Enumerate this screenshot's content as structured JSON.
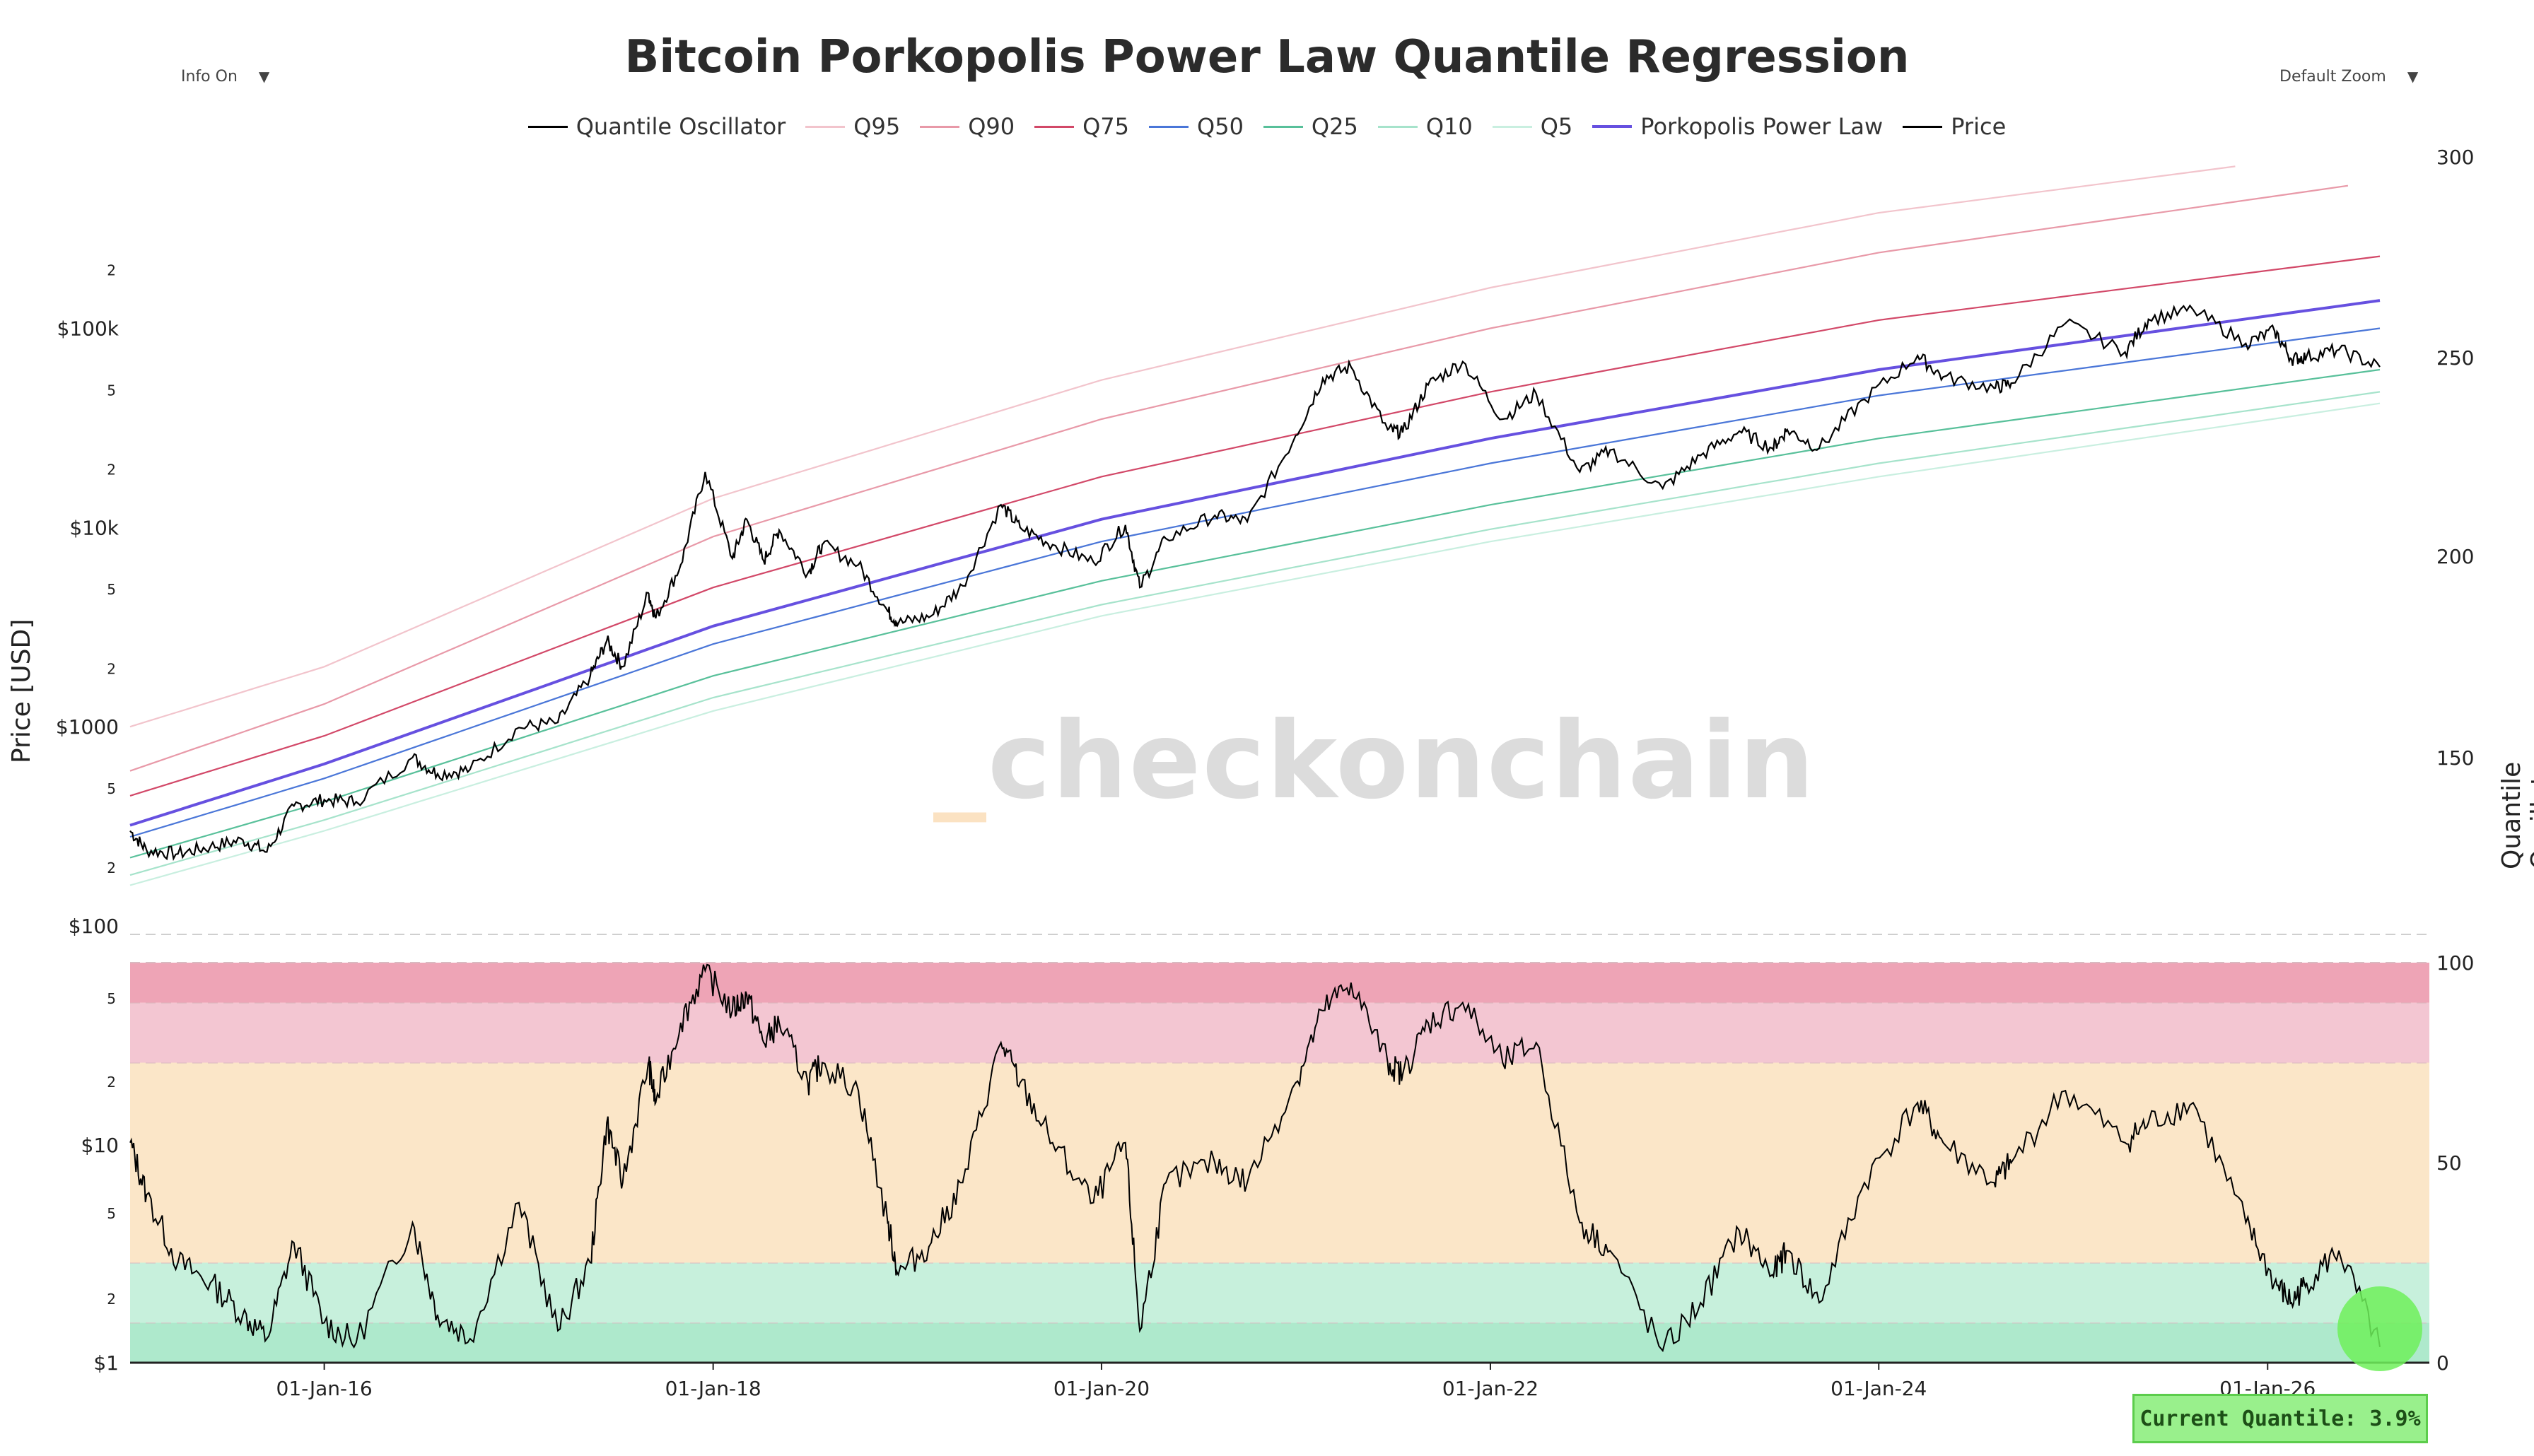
{
  "header": {
    "title": "Bitcoin Porkopolis Power Law Quantile Regression",
    "info_label": "Info On",
    "zoom_label": "Default Zoom"
  },
  "watermark": "checkonchain",
  "axes": {
    "left_title": "Price [USD]",
    "right_title": "Quantile Oscillator"
  },
  "badge": "Current Quantile: 3.9%",
  "colors": {
    "q95": "#f2c4cc",
    "q90": "#e899a8",
    "q75": "#d24868",
    "q50": "#4a76d8",
    "q25": "#58c09a",
    "q10": "#a6e3cb",
    "q5": "#c9efe0",
    "powerlaw": "#6650e0",
    "price": "#000000",
    "band_top": "#eea4b6",
    "band_high": "#f3c6d2",
    "band_mid": "#fbe6c8",
    "band_low": "#c7f0dc",
    "band_bottom": "#aee9cc",
    "current_marker": "#6ef05a"
  },
  "chart_data": {
    "type": "line",
    "title": "Bitcoin Porkopolis Power Law Quantile Regression",
    "xlabel": "",
    "ylabel": "Price [USD]",
    "ylabel_right": "Quantile Oscillator",
    "legend_position": "top-center",
    "x_range": [
      "2015-01-01",
      "2026-11-01"
    ],
    "x_ticks": [
      "01-Jan-16",
      "01-Jan-18",
      "01-Jan-20",
      "01-Jan-22",
      "01-Jan-24",
      "01-Jan-26"
    ],
    "price_y_scale": "log",
    "price_y_range": [
      100,
      800000
    ],
    "price_y_ticks": [
      "$100",
      "2",
      "5",
      "$1000",
      "2",
      "5",
      "$10k",
      "2",
      "5",
      "$100k",
      "2"
    ],
    "right_y_ticks_top": [
      "150",
      "200",
      "250",
      "300"
    ],
    "osc_price_y_ticks": [
      "$1",
      "2",
      "5",
      "$10",
      "2",
      "5"
    ],
    "osc_y_range": [
      0,
      100
    ],
    "osc_y_ticks": [
      "0",
      "50",
      "100"
    ],
    "osc_bands": [
      {
        "from": 0,
        "to": 10,
        "color": "band_bottom"
      },
      {
        "from": 10,
        "to": 25,
        "color": "band_low"
      },
      {
        "from": 25,
        "to": 75,
        "color": "band_mid"
      },
      {
        "from": 75,
        "to": 90,
        "color": "band_high"
      },
      {
        "from": 90,
        "to": 100,
        "color": "band_top"
      }
    ],
    "legend": [
      "Quantile Oscillator",
      "Q95",
      "Q90",
      "Q75",
      "Q50",
      "Q25",
      "Q10",
      "Q5",
      "Porkopolis Power Law",
      "Price"
    ],
    "curves": [
      {
        "name": "Q95",
        "color": "q95",
        "points": [
          [
            "2015-01-01",
            1000
          ],
          [
            "2016-01-01",
            2000
          ],
          [
            "2018-01-01",
            14000
          ],
          [
            "2020-01-01",
            55000
          ],
          [
            "2022-01-01",
            160000
          ],
          [
            "2024-01-01",
            380000
          ],
          [
            "2025-11-01",
            650000
          ]
        ]
      },
      {
        "name": "Q90",
        "color": "q90",
        "points": [
          [
            "2015-01-01",
            600
          ],
          [
            "2016-01-01",
            1300
          ],
          [
            "2018-01-01",
            9000
          ],
          [
            "2020-01-01",
            35000
          ],
          [
            "2022-01-01",
            100000
          ],
          [
            "2024-01-01",
            240000
          ],
          [
            "2026-06-01",
            520000
          ]
        ]
      },
      {
        "name": "Q75",
        "color": "q75",
        "points": [
          [
            "2015-01-01",
            450
          ],
          [
            "2016-01-01",
            900
          ],
          [
            "2018-01-01",
            5000
          ],
          [
            "2020-01-01",
            18000
          ],
          [
            "2022-01-01",
            48000
          ],
          [
            "2024-01-01",
            110000
          ],
          [
            "2026-07-31",
            230000
          ]
        ]
      },
      {
        "name": "Porkopolis Power Law",
        "color": "powerlaw",
        "points": [
          [
            "2015-01-01",
            320
          ],
          [
            "2016-01-01",
            650
          ],
          [
            "2018-01-01",
            3200
          ],
          [
            "2020-01-01",
            11000
          ],
          [
            "2022-01-01",
            28000
          ],
          [
            "2024-01-01",
            62000
          ],
          [
            "2026-07-31",
            138000
          ]
        ]
      },
      {
        "name": "Q50",
        "color": "q50",
        "points": [
          [
            "2015-01-01",
            280
          ],
          [
            "2016-01-01",
            550
          ],
          [
            "2018-01-01",
            2600
          ],
          [
            "2020-01-01",
            8500
          ],
          [
            "2022-01-01",
            21000
          ],
          [
            "2024-01-01",
            46000
          ],
          [
            "2026-07-31",
            100000
          ]
        ]
      },
      {
        "name": "Q25",
        "color": "q25",
        "points": [
          [
            "2015-01-01",
            220
          ],
          [
            "2016-01-01",
            420
          ],
          [
            "2018-01-01",
            1800
          ],
          [
            "2020-01-01",
            5400
          ],
          [
            "2022-01-01",
            13000
          ],
          [
            "2024-01-01",
            28000
          ],
          [
            "2026-07-31",
            62000
          ]
        ]
      },
      {
        "name": "Q10",
        "color": "q10",
        "points": [
          [
            "2015-01-01",
            180
          ],
          [
            "2016-01-01",
            340
          ],
          [
            "2018-01-01",
            1400
          ],
          [
            "2020-01-01",
            4100
          ],
          [
            "2022-01-01",
            9800
          ],
          [
            "2024-01-01",
            21000
          ],
          [
            "2026-07-31",
            48000
          ]
        ]
      },
      {
        "name": "Q5",
        "color": "q5",
        "points": [
          [
            "2015-01-01",
            160
          ],
          [
            "2016-01-01",
            300
          ],
          [
            "2018-01-01",
            1200
          ],
          [
            "2020-01-01",
            3600
          ],
          [
            "2022-01-01",
            8500
          ],
          [
            "2024-01-01",
            18000
          ],
          [
            "2026-07-31",
            42000
          ]
        ]
      }
    ],
    "price": [
      [
        "2015-01-01",
        300
      ],
      [
        "2015-02-01",
        240
      ],
      [
        "2015-04-01",
        230
      ],
      [
        "2015-06-01",
        250
      ],
      [
        "2015-08-01",
        270
      ],
      [
        "2015-09-15",
        235
      ],
      [
        "2015-11-05",
        400
      ],
      [
        "2016-01-01",
        430
      ],
      [
        "2016-03-01",
        420
      ],
      [
        "2016-06-15",
        700
      ],
      [
        "2016-08-01",
        580
      ],
      [
        "2016-10-01",
        610
      ],
      [
        "2017-01-01",
        990
      ],
      [
        "2017-03-15",
        1050
      ],
      [
        "2017-05-15",
        1800
      ],
      [
        "2017-06-15",
        2700
      ],
      [
        "2017-07-15",
        2000
      ],
      [
        "2017-09-01",
        4700
      ],
      [
        "2017-09-15",
        3500
      ],
      [
        "2017-11-01",
        6500
      ],
      [
        "2017-12-17",
        19000
      ],
      [
        "2018-02-06",
        7000
      ],
      [
        "2018-03-05",
        11000
      ],
      [
        "2018-04-06",
        6800
      ],
      [
        "2018-05-05",
        9700
      ],
      [
        "2018-06-28",
        5900
      ],
      [
        "2018-07-25",
        8200
      ],
      [
        "2018-10-01",
        6500
      ],
      [
        "2018-11-25",
        3800
      ],
      [
        "2018-12-15",
        3300
      ],
      [
        "2019-02-15",
        3600
      ],
      [
        "2019-04-15",
        5100
      ],
      [
        "2019-06-26",
        13000
      ],
      [
        "2019-08-01",
        10000
      ],
      [
        "2019-10-01",
        8200
      ],
      [
        "2019-12-17",
        6700
      ],
      [
        "2020-02-15",
        10300
      ],
      [
        "2020-03-13",
        5000
      ],
      [
        "2020-05-01",
        8800
      ],
      [
        "2020-08-01",
        11500
      ],
      [
        "2020-10-01",
        10700
      ],
      [
        "2020-12-31",
        29000
      ],
      [
        "2021-02-20",
        56000
      ],
      [
        "2021-04-14",
        64000
      ],
      [
        "2021-06-22",
        31000
      ],
      [
        "2021-07-20",
        30000
      ],
      [
        "2021-09-06",
        52000
      ],
      [
        "2021-11-10",
        68000
      ],
      [
        "2022-01-24",
        35000
      ],
      [
        "2022-03-28",
        47000
      ],
      [
        "2022-06-18",
        19000
      ],
      [
        "2022-08-14",
        24500
      ],
      [
        "2022-11-21",
        15700
      ],
      [
        "2023-01-31",
        23000
      ],
      [
        "2023-04-14",
        30500
      ],
      [
        "2023-06-15",
        25000
      ],
      [
        "2023-07-13",
        31000
      ],
      [
        "2023-09-11",
        25000
      ],
      [
        "2023-12-05",
        44000
      ],
      [
        "2024-03-14",
        73000
      ],
      [
        "2024-05-01",
        57000
      ],
      [
        "2024-08-05",
        50000
      ],
      [
        "2024-09-06",
        53000
      ],
      [
        "2024-12-17",
        106000
      ],
      [
        "2025-04-08",
        76000
      ],
      [
        "2025-05-22",
        111000
      ],
      [
        "2025-08-14",
        124000
      ],
      [
        "2025-11-21",
        84000
      ],
      [
        "2026-01-14",
        97000
      ],
      [
        "2026-02-15",
        70000
      ],
      [
        "2026-03-15",
        72000
      ],
      [
        "2026-05-15",
        78000
      ],
      [
        "2026-07-31",
        64000
      ]
    ],
    "quantile_oscillator": [
      [
        "2015-01-01",
        55
      ],
      [
        "2015-02-01",
        42
      ],
      [
        "2015-04-01",
        25
      ],
      [
        "2015-06-01",
        20
      ],
      [
        "2015-08-01",
        12
      ],
      [
        "2015-09-15",
        6
      ],
      [
        "2015-11-05",
        30
      ],
      [
        "2016-01-01",
        10
      ],
      [
        "2016-03-01",
        5
      ],
      [
        "2016-06-15",
        35
      ],
      [
        "2016-08-01",
        12
      ],
      [
        "2016-10-01",
        6
      ],
      [
        "2017-01-01",
        40
      ],
      [
        "2017-03-15",
        8
      ],
      [
        "2017-05-15",
        25
      ],
      [
        "2017-06-15",
        60
      ],
      [
        "2017-07-15",
        45
      ],
      [
        "2017-09-01",
        75
      ],
      [
        "2017-09-15",
        65
      ],
      [
        "2017-11-01",
        85
      ],
      [
        "2017-12-17",
        98
      ],
      [
        "2018-02-06",
        88
      ],
      [
        "2018-03-05",
        92
      ],
      [
        "2018-04-06",
        80
      ],
      [
        "2018-05-05",
        85
      ],
      [
        "2018-06-28",
        70
      ],
      [
        "2018-07-25",
        75
      ],
      [
        "2018-10-01",
        68
      ],
      [
        "2018-11-25",
        35
      ],
      [
        "2018-12-15",
        22
      ],
      [
        "2019-02-15",
        30
      ],
      [
        "2019-04-15",
        45
      ],
      [
        "2019-06-26",
        80
      ],
      [
        "2019-08-01",
        70
      ],
      [
        "2019-10-01",
        55
      ],
      [
        "2019-12-17",
        40
      ],
      [
        "2020-02-15",
        55
      ],
      [
        "2020-03-13",
        8
      ],
      [
        "2020-05-01",
        45
      ],
      [
        "2020-08-01",
        50
      ],
      [
        "2020-10-01",
        45
      ],
      [
        "2020-12-31",
        70
      ],
      [
        "2021-02-20",
        88
      ],
      [
        "2021-04-14",
        95
      ],
      [
        "2021-06-22",
        75
      ],
      [
        "2021-07-20",
        72
      ],
      [
        "2021-09-06",
        85
      ],
      [
        "2021-11-10",
        90
      ],
      [
        "2022-01-24",
        75
      ],
      [
        "2022-03-28",
        80
      ],
      [
        "2022-06-18",
        35
      ],
      [
        "2022-08-14",
        28
      ],
      [
        "2022-11-21",
        3
      ],
      [
        "2023-01-31",
        15
      ],
      [
        "2023-04-14",
        33
      ],
      [
        "2023-06-15",
        22
      ],
      [
        "2023-07-13",
        28
      ],
      [
        "2023-09-11",
        15
      ],
      [
        "2023-12-05",
        45
      ],
      [
        "2024-03-14",
        65
      ],
      [
        "2024-05-01",
        55
      ],
      [
        "2024-08-05",
        45
      ],
      [
        "2024-09-06",
        50
      ],
      [
        "2024-12-17",
        68
      ],
      [
        "2025-04-08",
        55
      ],
      [
        "2025-05-22",
        60
      ],
      [
        "2025-08-14",
        65
      ],
      [
        "2025-11-21",
        35
      ],
      [
        "2026-01-14",
        20
      ],
      [
        "2026-02-15",
        15
      ],
      [
        "2026-03-15",
        20
      ],
      [
        "2026-05-15",
        28
      ],
      [
        "2026-07-31",
        3.9
      ]
    ],
    "current_quantile": 3.9
  }
}
